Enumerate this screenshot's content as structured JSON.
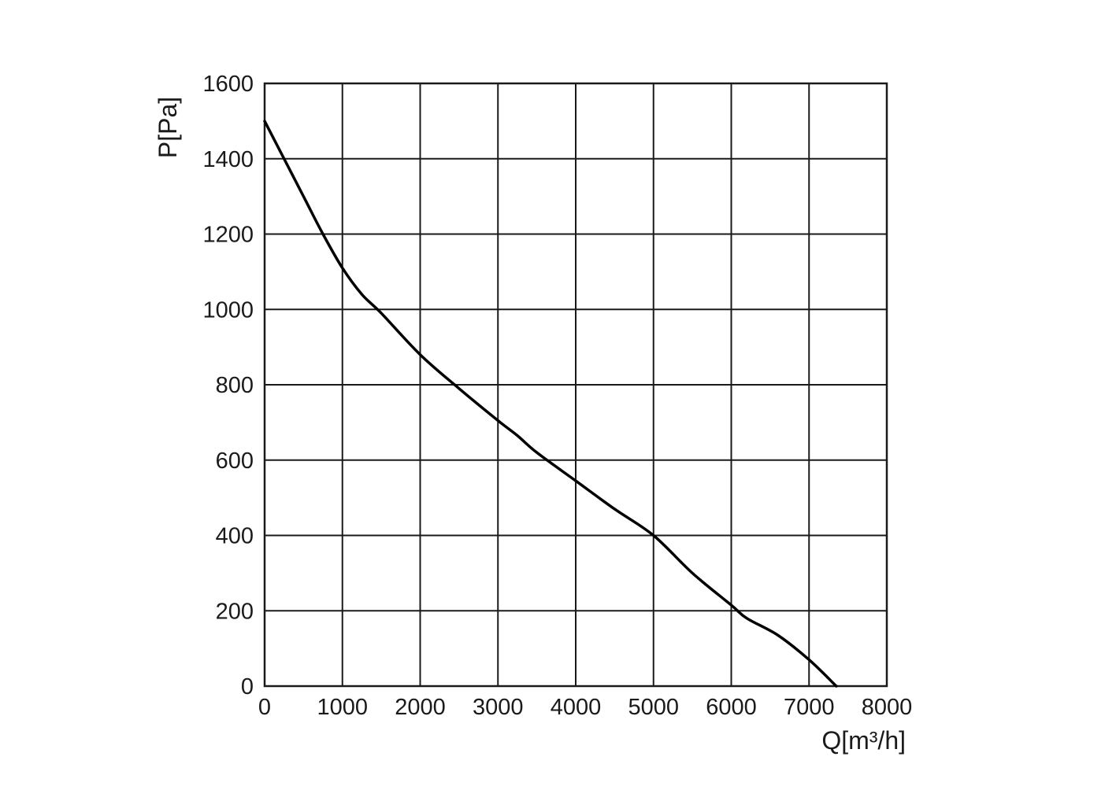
{
  "chart_data": {
    "type": "line",
    "title": "",
    "xlabel": "Q[m³/h]",
    "ylabel": "P[Pa]",
    "xlim": [
      0,
      8000
    ],
    "ylim": [
      0,
      1600
    ],
    "x_ticks": [
      0,
      1000,
      2000,
      3000,
      4000,
      5000,
      6000,
      7000,
      8000
    ],
    "y_ticks": [
      0,
      200,
      400,
      600,
      800,
      1000,
      1200,
      1400,
      1600
    ],
    "x_tick_labels": [
      "0",
      "1000",
      "2000",
      "3000",
      "4000",
      "5000",
      "6000",
      "7000",
      "8000"
    ],
    "y_tick_labels": [
      "0",
      "200",
      "400",
      "600",
      "800",
      "1000",
      "1200",
      "1400",
      "1600"
    ],
    "grid": true,
    "legend": "none",
    "series": [
      {
        "color": "#000000",
        "x": [
          0,
          250,
          500,
          750,
          1000,
          1250,
          1500,
          2000,
          2500,
          3000,
          3250,
          3500,
          4000,
          4500,
          5000,
          5500,
          6000,
          6200,
          6600,
          7000,
          7350
        ],
        "y": [
          1500,
          1400,
          1300,
          1200,
          1110,
          1040,
          990,
          880,
          790,
          705,
          665,
          620,
          545,
          470,
          400,
          300,
          215,
          180,
          135,
          70,
          0
        ]
      }
    ]
  }
}
